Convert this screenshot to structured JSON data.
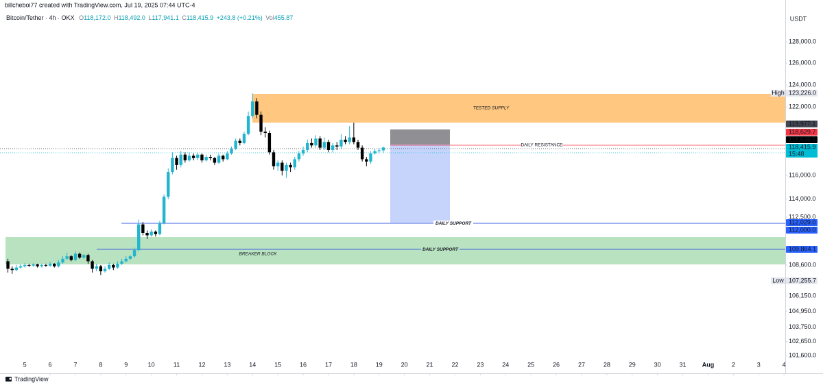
{
  "header": {
    "attribution": "billcheboi77 created with TradingView.com, Jul 19, 2025 07:44 UTC-4",
    "symbol": "Bitcoin/Tether · 4h · OKX",
    "ohlc": [
      {
        "key": "O",
        "value": "118,172.0"
      },
      {
        "key": "H",
        "value": "118,492.0"
      },
      {
        "key": "L",
        "value": "117,941.1"
      },
      {
        "key": "C",
        "value": "118,415.9"
      }
    ],
    "change": "+243.8 (+0.21%)",
    "volume": {
      "key": "Vol",
      "value": "455.87"
    }
  },
  "chart_data": {
    "type": "candlestick",
    "currency": "USDT",
    "up_color": "#22b5cf",
    "down_color": "#000000",
    "log": true,
    "grid": false,
    "xlim": [
      4.02,
      35.05
    ],
    "xticks": [
      5,
      6,
      7,
      8,
      9,
      10,
      11,
      12,
      13,
      14,
      15,
      16,
      17,
      18,
      19,
      20,
      21,
      22,
      23,
      24,
      25,
      26,
      27,
      28,
      29,
      30,
      31,
      {
        "value": 32,
        "label": "Aug"
      },
      {
        "value": 33,
        "label": "2"
      },
      {
        "value": 34,
        "label": "3"
      },
      {
        "value": 35,
        "label": "4"
      }
    ],
    "ylim": [
      100530,
      131340
    ],
    "yticks": [
      {
        "value": 128000,
        "label": "128,000.0"
      },
      {
        "value": 126000,
        "label": "126,000.0"
      },
      {
        "value": 124000,
        "label": "124,000.0"
      },
      {
        "value": 122000,
        "label": "122,000.0"
      },
      {
        "value": 116000,
        "label": "116,000.0"
      },
      {
        "value": 114000,
        "label": "114,000.0"
      },
      {
        "value": 112500,
        "label": "112,500.0"
      },
      {
        "value": 108600,
        "label": "108,600.0"
      },
      {
        "value": 106150,
        "label": "106,150.0"
      },
      {
        "value": 104950,
        "label": "104,950.0"
      },
      {
        "value": 103750,
        "label": "103,750.0"
      },
      {
        "value": 102650,
        "label": "102,650.0"
      },
      {
        "value": 101600,
        "label": "101,600.0"
      }
    ],
    "x": [
      4.333,
      4.5,
      4.667,
      4.833,
      5,
      5.167,
      5.333,
      5.5,
      5.667,
      5.833,
      6,
      6.167,
      6.333,
      6.5,
      6.667,
      6.833,
      7,
      7.167,
      7.333,
      7.5,
      7.667,
      7.833,
      8,
      8.167,
      8.333,
      8.5,
      8.667,
      8.833,
      9,
      9.167,
      9.333,
      9.5,
      9.667,
      9.833,
      10,
      10.167,
      10.333,
      10.5,
      10.667,
      10.833,
      11,
      11.167,
      11.333,
      11.5,
      11.667,
      11.833,
      12,
      12.167,
      12.333,
      12.5,
      12.667,
      12.833,
      13,
      13.167,
      13.333,
      13.5,
      13.667,
      13.833,
      14,
      14.167,
      14.333,
      14.5,
      14.667,
      14.833,
      15,
      15.167,
      15.333,
      15.5,
      15.667,
      15.833,
      16,
      16.167,
      16.333,
      16.5,
      16.667,
      16.833,
      17,
      17.167,
      17.333,
      17.5,
      17.667,
      17.833,
      18,
      18.167,
      18.333,
      18.5,
      18.667,
      18.833,
      19,
      19.167
    ],
    "open": [
      108900,
      108300,
      108200,
      108400,
      108500,
      108600,
      108550,
      108650,
      108500,
      108600,
      108550,
      108700,
      108500,
      108800,
      109100,
      109300,
      109000,
      109500,
      109200,
      109400,
      108900,
      108300,
      108500,
      108100,
      108300,
      108600,
      108400,
      108700,
      108900,
      109100,
      109300,
      109800,
      111900,
      111200,
      111000,
      111300,
      111100,
      112000,
      114200,
      116300,
      117500,
      116900,
      117800,
      117300,
      117700,
      117500,
      117800,
      117300,
      117600,
      117500,
      117100,
      117700,
      117400,
      117900,
      118300,
      119000,
      118800,
      119600,
      121200,
      122500,
      121300,
      119800,
      119700,
      118000,
      116800,
      117100,
      116400,
      116900,
      116700,
      117400,
      117900,
      118200,
      118800,
      118600,
      119200,
      118400,
      118900,
      118200,
      118600,
      118500,
      119100,
      118900,
      119300,
      118900,
      118400,
      117400,
      117200,
      117900,
      118100,
      118172
    ],
    "high": [
      109100,
      108500,
      108600,
      108700,
      108750,
      108700,
      108750,
      108700,
      108700,
      108700,
      108850,
      108750,
      109000,
      109300,
      109600,
      109400,
      109700,
      109600,
      109500,
      109500,
      109000,
      108700,
      108600,
      108500,
      108800,
      108700,
      108900,
      109100,
      109300,
      109400,
      110000,
      112300,
      112100,
      111400,
      111500,
      111400,
      112200,
      114400,
      116600,
      118000,
      117700,
      118100,
      118000,
      118000,
      117900,
      118000,
      117900,
      117800,
      117800,
      117600,
      117900,
      117800,
      118100,
      118500,
      119200,
      119200,
      119800,
      121600,
      123226,
      122800,
      121600,
      120200,
      119900,
      118200,
      117300,
      117300,
      117100,
      117100,
      117600,
      118100,
      118500,
      119100,
      119200,
      119500,
      119400,
      119300,
      119100,
      118800,
      118900,
      119600,
      119400,
      120300,
      120600,
      119100,
      118600,
      117600,
      118100,
      118300,
      118400,
      118492
    ],
    "low": [
      108000,
      107900,
      108100,
      108300,
      108400,
      108450,
      108450,
      108400,
      108400,
      108450,
      108450,
      108400,
      108400,
      108700,
      109000,
      108900,
      108900,
      109100,
      109100,
      108700,
      108000,
      108100,
      107800,
      108000,
      108200,
      108200,
      108300,
      108600,
      108800,
      109000,
      109200,
      109700,
      111000,
      110700,
      110900,
      110900,
      111000,
      111900,
      114000,
      116100,
      116500,
      116700,
      117100,
      117200,
      117300,
      117300,
      117100,
      117200,
      117300,
      116900,
      117000,
      117200,
      117300,
      117800,
      118200,
      118600,
      118700,
      119500,
      121000,
      121000,
      119500,
      119300,
      117800,
      116500,
      116400,
      116000,
      115800,
      116300,
      116500,
      117200,
      117700,
      118000,
      118400,
      118400,
      118200,
      118200,
      118000,
      118000,
      118200,
      118300,
      118700,
      118700,
      118700,
      118200,
      117200,
      116800,
      117000,
      117800,
      117900,
      117941.1
    ],
    "close": [
      108300,
      108200,
      108400,
      108500,
      108600,
      108550,
      108650,
      108500,
      108600,
      108550,
      108700,
      108500,
      108800,
      109100,
      109300,
      109000,
      109500,
      109200,
      109400,
      108900,
      108300,
      108500,
      108100,
      108300,
      108600,
      108400,
      108700,
      108900,
      109100,
      109300,
      109800,
      111900,
      111200,
      111000,
      111300,
      111100,
      112000,
      114200,
      116300,
      117500,
      116900,
      117800,
      117300,
      117700,
      117500,
      117800,
      117300,
      117600,
      117500,
      117100,
      117700,
      117400,
      117900,
      118300,
      119000,
      118800,
      119600,
      121200,
      122500,
      121300,
      119800,
      119700,
      118000,
      116800,
      117100,
      116400,
      116900,
      116700,
      117400,
      117900,
      118200,
      118800,
      118600,
      119200,
      118400,
      118900,
      118200,
      118600,
      118500,
      119100,
      118900,
      119300,
      118900,
      118400,
      117400,
      117200,
      117900,
      118100,
      118172,
      118415.9
    ],
    "annotations": {
      "supply": "TESTED SUPPLY",
      "resistance": "DAILY RESISTANCE",
      "support_upper": "DAILY SUPPORT",
      "support_lower": "DAILY SUPPORT",
      "breaker": "BREAKER BLOCK"
    },
    "price_labels": [
      {
        "value": 123226,
        "label": "123,226.0",
        "tag": "High",
        "color": "#e6e8ef"
      },
      {
        "value": 119977.1,
        "label": "119,977.1",
        "color": "#434651"
      },
      {
        "value": 118629.7,
        "label": "118,629.7",
        "color": "#f23645"
      },
      {
        "value": 118626.5,
        "label": "118,626.5",
        "color": "#000000"
      },
      {
        "value": 118415.9,
        "label": "118,415.9",
        "timer": "15:48",
        "color": "#00bcd4"
      },
      {
        "value": 112029,
        "label": "112,029.0",
        "color": "#2962ff"
      },
      {
        "value": 112000,
        "label": "112,000.0",
        "color": "#2962ff"
      },
      {
        "value": 109864.1,
        "label": "109,864.1",
        "color": "#2962ff"
      },
      {
        "value": 107255.7,
        "label": "107,255.7",
        "tag": "Low",
        "color": "#e6e8ef"
      }
    ]
  },
  "footer": {
    "brand": "TradingView"
  }
}
